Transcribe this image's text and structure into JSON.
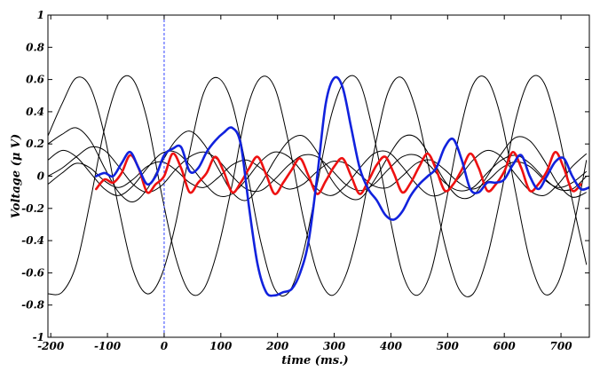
{
  "chart_data": {
    "type": "line",
    "title": "",
    "xlabel": "time (ms.)",
    "ylabel": "Voltage (μ V)",
    "xlim": [
      -205,
      750
    ],
    "ylim": [
      -1,
      1
    ],
    "x_ticks": [
      -200,
      -100,
      0,
      100,
      200,
      300,
      400,
      500,
      600,
      700
    ],
    "x_tick_labels": [
      "-200",
      "-100",
      "0",
      "100",
      "200",
      "300",
      "400",
      "500",
      "600",
      "700"
    ],
    "y_ticks": [
      1,
      0.8,
      0.6,
      0.4,
      0.2,
      0,
      -0.2,
      -0.4,
      -0.6,
      -0.8,
      -1
    ],
    "y_tick_labels": [
      "1",
      "0.8",
      "0.6",
      "0.4",
      "0.2",
      "0",
      "-0.2",
      "-0.4",
      "-0.6",
      "-0.8",
      "-1"
    ],
    "grid": false,
    "legend": "none",
    "reference_line": {
      "x": 0,
      "color": "#3344ff",
      "style": "dashed"
    },
    "background_series": [
      {
        "color": "#000000",
        "x": [
          -205,
          -180,
          -155,
          -130,
          -105,
          -80,
          -55,
          -30,
          -5,
          20,
          45,
          70,
          95,
          120,
          145,
          170,
          195,
          220,
          245,
          270,
          295,
          320,
          345,
          370,
          395,
          420,
          445,
          470,
          495,
          520,
          545,
          570,
          595,
          620,
          645,
          670,
          695,
          720,
          745
        ],
        "y": [
          -0.73,
          -0.72,
          -0.55,
          -0.15,
          0.3,
          0.58,
          0.6,
          0.35,
          -0.1,
          -0.5,
          -0.72,
          -0.7,
          -0.45,
          -0.05,
          0.4,
          0.61,
          0.55,
          0.2,
          -0.25,
          -0.6,
          -0.74,
          -0.62,
          -0.3,
          0.15,
          0.52,
          0.61,
          0.4,
          0.0,
          -0.42,
          -0.7,
          -0.73,
          -0.5,
          -0.1,
          0.35,
          0.6,
          0.58,
          0.28,
          -0.15,
          -0.55
        ]
      },
      {
        "color": "#000000",
        "x": [
          -205,
          -180,
          -155,
          -130,
          -105,
          -80,
          -55,
          -30,
          -5,
          20,
          45,
          70,
          95,
          120,
          145,
          170,
          195,
          220,
          245,
          270,
          295,
          320,
          345,
          370,
          395,
          420,
          445,
          470,
          495,
          520,
          545,
          570,
          595,
          620,
          645,
          670,
          695,
          720,
          745
        ],
        "y": [
          0.25,
          0.45,
          0.61,
          0.55,
          0.25,
          -0.2,
          -0.58,
          -0.73,
          -0.62,
          -0.3,
          0.15,
          0.52,
          0.61,
          0.45,
          0.05,
          -0.4,
          -0.7,
          -0.72,
          -0.48,
          -0.05,
          0.38,
          0.6,
          0.58,
          0.25,
          -0.2,
          -0.6,
          -0.74,
          -0.6,
          -0.2,
          0.25,
          0.57,
          0.6,
          0.35,
          -0.1,
          -0.52,
          -0.73,
          -0.66,
          -0.35,
          0.1
        ]
      },
      {
        "color": "#000000",
        "x": [
          -205,
          -180,
          -155,
          -130,
          -105,
          -80,
          -55,
          -30,
          -5,
          20,
          45,
          70,
          95,
          120,
          145,
          170,
          195,
          220,
          245,
          270,
          295,
          320,
          345,
          370,
          395,
          420,
          445,
          470,
          495,
          520,
          545,
          570,
          595,
          620,
          645,
          670,
          695,
          720,
          745
        ],
        "y": [
          0.2,
          0.26,
          0.3,
          0.22,
          0.05,
          -0.1,
          -0.16,
          -0.08,
          0.08,
          0.22,
          0.28,
          0.2,
          0.05,
          -0.1,
          -0.15,
          -0.05,
          0.1,
          0.22,
          0.25,
          0.15,
          -0.02,
          -0.12,
          -0.14,
          -0.03,
          0.12,
          0.24,
          0.24,
          0.12,
          -0.03,
          -0.13,
          -0.12,
          0.0,
          0.14,
          0.24,
          0.22,
          0.1,
          -0.05,
          -0.13,
          -0.1
        ]
      },
      {
        "color": "#000000",
        "x": [
          -205,
          -180,
          -155,
          -130,
          -105,
          -80,
          -55,
          -30,
          -5,
          20,
          45,
          70,
          95,
          120,
          145,
          170,
          195,
          220,
          245,
          270,
          295,
          320,
          345,
          370,
          395,
          420,
          445,
          470,
          495,
          520,
          545,
          570,
          595,
          620,
          645,
          670,
          695,
          720,
          745
        ],
        "y": [
          0.0,
          0.05,
          0.12,
          0.18,
          0.16,
          0.06,
          -0.05,
          -0.1,
          -0.06,
          0.04,
          0.12,
          0.15,
          0.1,
          0.0,
          -0.08,
          -0.09,
          -0.02,
          0.07,
          0.13,
          0.12,
          0.04,
          -0.05,
          -0.09,
          -0.05,
          0.04,
          0.12,
          0.13,
          0.06,
          -0.04,
          -0.09,
          -0.07,
          0.02,
          0.1,
          0.13,
          0.08,
          -0.01,
          -0.08,
          -0.08,
          0.0
        ]
      },
      {
        "color": "#000000",
        "x": [
          -205,
          -180,
          -155,
          -130,
          -105,
          -80,
          -55,
          -30,
          -5,
          20,
          45,
          70,
          95,
          120,
          145,
          170,
          195,
          220,
          245,
          270,
          295,
          320,
          345,
          370,
          395,
          420,
          445,
          470,
          495,
          520,
          545,
          570,
          595,
          620,
          645,
          670,
          695,
          720,
          745
        ],
        "y": [
          -0.05,
          0.02,
          0.08,
          0.05,
          -0.03,
          -0.07,
          -0.02,
          0.06,
          0.09,
          0.04,
          -0.04,
          -0.07,
          -0.01,
          0.07,
          0.1,
          0.05,
          -0.03,
          -0.08,
          -0.05,
          0.03,
          0.09,
          0.08,
          0.01,
          -0.06,
          -0.07,
          0.0,
          0.08,
          0.1,
          0.04,
          -0.04,
          -0.08,
          -0.03,
          0.05,
          0.09,
          0.06,
          -0.02,
          -0.07,
          -0.04,
          0.03
        ]
      },
      {
        "color": "#000000",
        "x": [
          -205,
          -180,
          -155,
          -130,
          -105,
          -80,
          -55,
          -30,
          -5,
          20,
          45,
          70,
          95,
          120,
          145,
          170,
          195,
          220,
          245,
          270,
          295,
          320,
          345,
          370,
          395,
          420,
          445,
          470,
          495,
          520,
          545,
          570,
          595,
          620,
          645,
          670,
          695,
          720,
          745
        ],
        "y": [
          0.1,
          0.16,
          0.12,
          0.02,
          -0.08,
          -0.12,
          -0.06,
          0.05,
          0.14,
          0.15,
          0.07,
          -0.04,
          -0.12,
          -0.11,
          -0.02,
          0.09,
          0.15,
          0.12,
          0.02,
          -0.08,
          -0.12,
          -0.06,
          0.05,
          0.14,
          0.15,
          0.06,
          -0.05,
          -0.12,
          -0.1,
          -0.01,
          0.1,
          0.16,
          0.12,
          0.01,
          -0.09,
          -0.12,
          -0.05,
          0.06,
          0.14
        ]
      }
    ],
    "series": [
      {
        "color": "#ee1111",
        "x": [
          -120,
          -105,
          -90,
          -75,
          -60,
          -45,
          -30,
          -15,
          0,
          15,
          30,
          45,
          60,
          75,
          90,
          105,
          120,
          135,
          150,
          165,
          180,
          195,
          210,
          225,
          240,
          255,
          270,
          285,
          300,
          315,
          330,
          345,
          360,
          375,
          390,
          405,
          420,
          435,
          450,
          465,
          480,
          495,
          510,
          525,
          540,
          555,
          570,
          585,
          600,
          615,
          630,
          645,
          660,
          675,
          690,
          705,
          720,
          735
        ],
        "y": [
          -0.08,
          -0.02,
          -0.04,
          0.02,
          0.13,
          0.05,
          -0.1,
          -0.05,
          0.0,
          0.14,
          0.05,
          -0.1,
          -0.04,
          0.02,
          0.12,
          0.03,
          -0.1,
          -0.04,
          0.05,
          0.12,
          0.01,
          -0.11,
          -0.04,
          0.04,
          0.11,
          0.0,
          -0.11,
          -0.03,
          0.06,
          0.11,
          0.0,
          -0.11,
          -0.03,
          0.07,
          0.12,
          0.02,
          -0.1,
          -0.04,
          0.06,
          0.14,
          0.04,
          -0.09,
          -0.05,
          0.04,
          0.14,
          0.05,
          -0.09,
          -0.05,
          0.03,
          0.15,
          0.05,
          -0.09,
          -0.05,
          0.03,
          0.15,
          0.05,
          -0.09,
          -0.05
        ]
      },
      {
        "color": "#1122dd",
        "x": [
          -120,
          -105,
          -90,
          -75,
          -60,
          -45,
          -30,
          -15,
          0,
          15,
          30,
          45,
          60,
          75,
          90,
          105,
          120,
          135,
          150,
          165,
          180,
          195,
          210,
          225,
          240,
          255,
          270,
          285,
          300,
          315,
          330,
          345,
          360,
          375,
          390,
          405,
          420,
          435,
          450,
          465,
          480,
          495,
          510,
          525,
          540,
          555,
          570,
          585,
          600,
          615,
          630,
          645,
          660,
          675,
          690,
          705,
          720,
          735,
          750
        ],
        "y": [
          0.0,
          0.02,
          0.0,
          0.08,
          0.15,
          0.05,
          -0.05,
          0.0,
          0.13,
          0.17,
          0.18,
          0.03,
          0.05,
          0.15,
          0.22,
          0.27,
          0.3,
          0.2,
          -0.2,
          -0.55,
          -0.72,
          -0.74,
          -0.72,
          -0.7,
          -0.6,
          -0.4,
          0.0,
          0.45,
          0.61,
          0.55,
          0.3,
          0.05,
          -0.08,
          -0.15,
          -0.24,
          -0.27,
          -0.22,
          -0.12,
          -0.05,
          0.0,
          0.05,
          0.18,
          0.23,
          0.1,
          -0.08,
          -0.1,
          -0.04,
          -0.04,
          -0.02,
          0.07,
          0.13,
          0.0,
          -0.08,
          0.0,
          0.09,
          0.11,
          0.0,
          -0.08,
          -0.07
        ]
      }
    ]
  }
}
